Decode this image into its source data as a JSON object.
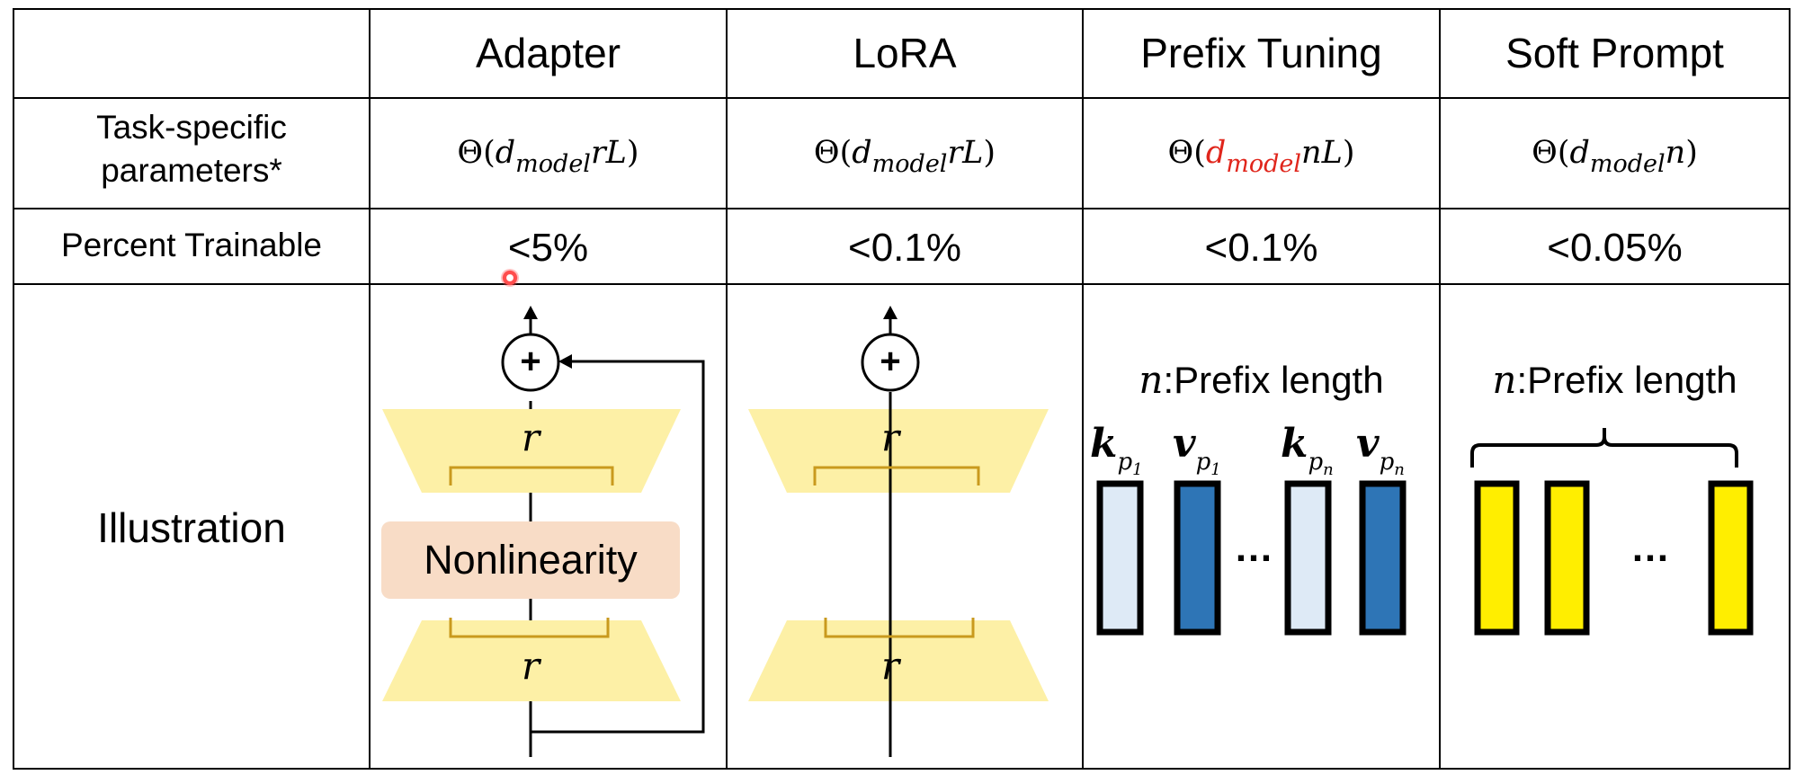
{
  "table": {
    "columns": [
      "Adapter",
      "LoRA",
      "Prefix Tuning",
      "Soft Prompt"
    ],
    "rows": {
      "task_params": {
        "label_line1": "Task-specific",
        "label_line2": "parameters*",
        "adapter": {
          "pre": "Θ(",
          "sub": "model",
          "var": "rL",
          "post": ")"
        },
        "lora": {
          "pre": "Θ(",
          "sub": "model",
          "var": "rL",
          "post": ")"
        },
        "prefix": {
          "pre": "Θ(",
          "sub": "model",
          "var": "nL",
          "post": ")"
        },
        "soft": {
          "pre": "Θ(",
          "sub": "model",
          "var": "n",
          "post": ")"
        },
        "d": "d"
      },
      "percent": {
        "label": "Percent Trainable",
        "values": [
          "<5%",
          "<0.1%",
          "<0.1%",
          "<0.05%"
        ]
      },
      "illustration": {
        "label": "Illustration"
      }
    }
  },
  "illustration": {
    "plus": "+",
    "r": "r",
    "nonlinearity": "Nonlinearity",
    "prefix_length_var": "n",
    "prefix_length_text": ":Prefix length",
    "k": "k",
    "v": "v",
    "p": "p",
    "sub1": "1",
    "subn": "n",
    "ellipsis": "…",
    "colors": {
      "trapezoid": "#fdf0a6",
      "bracket": "#c99a1e",
      "key_fill": "#deeaf6",
      "value_fill": "#2e75b6",
      "prompt_fill": "#ffee00",
      "highlight": "#e0261c"
    }
  }
}
